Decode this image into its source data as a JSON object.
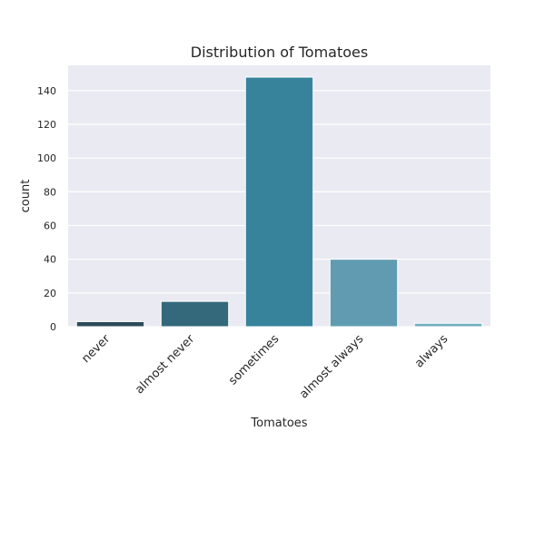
{
  "chart_data": {
    "type": "bar",
    "title": "Distribution of Tomatoes",
    "xlabel": "Tomatoes",
    "ylabel": "count",
    "categories": [
      "never",
      "almost never",
      "sometimes",
      "almost always",
      "always"
    ],
    "values": [
      3,
      15,
      148,
      40,
      2
    ],
    "ylim": [
      0,
      155
    ],
    "yticks": [
      0,
      20,
      40,
      60,
      80,
      100,
      120,
      140
    ],
    "grid": true,
    "colors": [
      "#2d4b58",
      "#33697b",
      "#36839b",
      "#609bb1",
      "#71aec1"
    ],
    "plot_background": "#eaeaf2",
    "grid_color": "#ffffff"
  }
}
